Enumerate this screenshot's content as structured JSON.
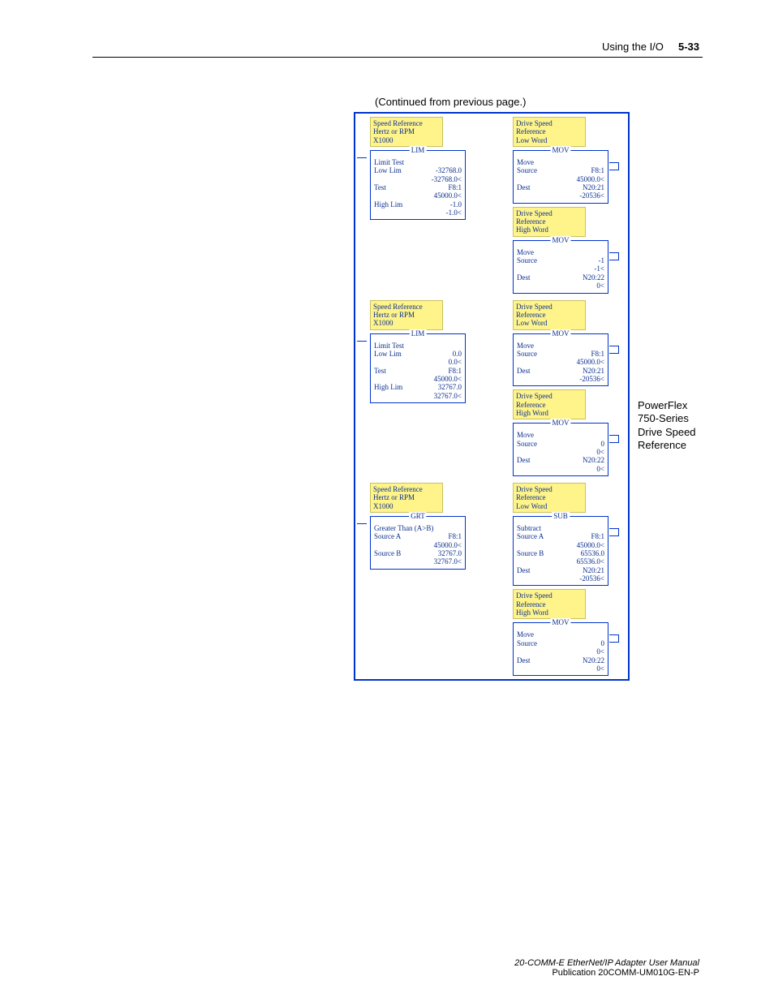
{
  "header": {
    "left": "Using the I/O",
    "right": "5-33"
  },
  "continued": "(Continued from previous page.)",
  "side_label": "PowerFlex\n750-Series\nDrive Speed\nReference",
  "footer": {
    "line1": "20-COMM-E EtherNet/IP Adapter User Manual",
    "line2": "Publication 20COMM-UM010G-EN-P"
  },
  "colors": {
    "rail": "#0033cc",
    "text": "#0b2f8f",
    "comment_bg": "#fff48a",
    "comment_border": "#c9c060"
  },
  "rungs": [
    {
      "left_comment": "Speed Reference\nHertz or RPM\nX1000",
      "left_block": {
        "legend": "LIM",
        "title": "Limit Test",
        "rows": [
          [
            "Low Lim",
            "-32768.0"
          ],
          [
            "",
            "-32768.0<"
          ],
          [
            "Test",
            "F8:1"
          ],
          [
            "",
            "45000.0<"
          ],
          [
            "High Lim",
            "-1.0"
          ],
          [
            "",
            "-1.0<"
          ]
        ]
      },
      "right_groups": [
        {
          "comment": "Drive Speed\nReference\nLow Word",
          "block": {
            "legend": "MOV",
            "title": "Move",
            "rows": [
              [
                "Source",
                "F8:1"
              ],
              [
                "",
                "45000.0<"
              ],
              [
                "Dest",
                "N20:21"
              ],
              [
                "",
                "-20536<"
              ]
            ]
          }
        },
        {
          "comment": "Drive Speed\nReference\nHigh Word",
          "block": {
            "legend": "MOV",
            "title": "Move",
            "rows": [
              [
                "Source",
                "-1"
              ],
              [
                "",
                "-1<"
              ],
              [
                "Dest",
                "N20:22"
              ],
              [
                "",
                "0<"
              ]
            ]
          }
        }
      ]
    },
    {
      "left_comment": "Speed Reference\nHertz or RPM\nX1000",
      "left_block": {
        "legend": "LIM",
        "title": "Limit Test",
        "rows": [
          [
            "Low Lim",
            "0.0"
          ],
          [
            "",
            "0.0<"
          ],
          [
            "Test",
            "F8:1"
          ],
          [
            "",
            "45000.0<"
          ],
          [
            "High Lim",
            "32767.0"
          ],
          [
            "",
            "32767.0<"
          ]
        ]
      },
      "right_groups": [
        {
          "comment": "Drive Speed\nReference\nLow Word",
          "block": {
            "legend": "MOV",
            "title": "Move",
            "rows": [
              [
                "Source",
                "F8:1"
              ],
              [
                "",
                "45000.0<"
              ],
              [
                "Dest",
                "N20:21"
              ],
              [
                "",
                "-20536<"
              ]
            ]
          }
        },
        {
          "comment": "Drive Speed\nReference\nHigh Word",
          "block": {
            "legend": "MOV",
            "title": "Move",
            "rows": [
              [
                "Source",
                "0"
              ],
              [
                "",
                "0<"
              ],
              [
                "Dest",
                "N20:22"
              ],
              [
                "",
                "0<"
              ]
            ]
          }
        }
      ]
    },
    {
      "left_comment": "Speed Reference\nHertz or RPM\nX1000",
      "left_block": {
        "legend": "GRT",
        "title": "Greater Than (A>B)",
        "rows": [
          [
            "Source A",
            "F8:1"
          ],
          [
            "",
            "45000.0<"
          ],
          [
            "Source B",
            "32767.0"
          ],
          [
            "",
            "32767.0<"
          ]
        ]
      },
      "right_groups": [
        {
          "comment": "Drive Speed\nReference\nLow Word",
          "block": {
            "legend": "SUB",
            "title": "Subtract",
            "rows": [
              [
                "Source A",
                "F8:1"
              ],
              [
                "",
                "45000.0<"
              ],
              [
                "Source B",
                "65536.0"
              ],
              [
                "",
                "65536.0<"
              ],
              [
                "Dest",
                "N20:21"
              ],
              [
                "",
                "-20536<"
              ]
            ]
          }
        },
        {
          "comment": "Drive Speed\nReference\nHigh Word",
          "block": {
            "legend": "MOV",
            "title": "Move",
            "rows": [
              [
                "Source",
                "0"
              ],
              [
                "",
                "0<"
              ],
              [
                "Dest",
                "N20:22"
              ],
              [
                "",
                "0<"
              ]
            ]
          }
        }
      ]
    }
  ]
}
